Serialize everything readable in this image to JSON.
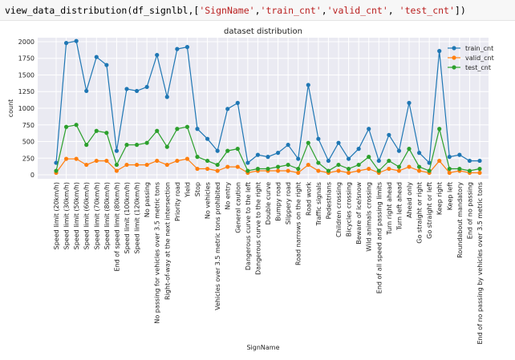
{
  "code": {
    "prefix": "view_data_distribution(df_signlbl,[",
    "args": [
      "'SignName'",
      "'train_cnt'",
      "'valid_cnt'",
      "'test_cnt'"
    ],
    "suffix": "])"
  },
  "chart_data": {
    "type": "line",
    "title": "dataset distribution",
    "xlabel": "SignName",
    "ylabel": "count",
    "ylim": [
      -60,
      2060
    ],
    "yticks": [
      0,
      250,
      500,
      750,
      1000,
      1250,
      1500,
      1750,
      2000
    ],
    "grid": true,
    "legend_position": "top-right",
    "categories": [
      "Speed limit (20km/h)",
      "Speed limit (30km/h)",
      "Speed limit (50km/h)",
      "Speed limit (60km/h)",
      "Speed limit (70km/h)",
      "Speed limit (80km/h)",
      "End of speed limit (80km/h)",
      "Speed limit (100km/h)",
      "Speed limit (120km/h)",
      "No passing",
      "No passing for vehicles over 3.5 metric tons",
      "Right-of-way at the next intersection",
      "Priority road",
      "Yield",
      "Stop",
      "No vehicles",
      "Vehicles over 3.5 metric tons prohibited",
      "No entry",
      "General caution",
      "Dangerous curve to the left",
      "Dangerous curve to the right",
      "Double curve",
      "Bumpy road",
      "Slippery road",
      "Road narrows on the right",
      "Road work",
      "Traffic signals",
      "Pedestrians",
      "Children crossing",
      "Bicycles crossing",
      "Beware of ice/snow",
      "Wild animals crossing",
      "End of all speed and passing limits",
      "Turn right ahead",
      "Turn left ahead",
      "Ahead only",
      "Go straight or right",
      "Go straight or left",
      "Keep right",
      "Keep left",
      "Roundabout mandatory",
      "End of no passing",
      "End of no passing by vehicles over 3.5 metric tons"
    ],
    "series": [
      {
        "name": "train_cnt",
        "color": "#1f77b4",
        "values": [
          180,
          1980,
          2010,
          1260,
          1770,
          1650,
          360,
          1290,
          1260,
          1320,
          1800,
          1170,
          1890,
          1920,
          690,
          540,
          360,
          990,
          1080,
          180,
          300,
          270,
          330,
          450,
          240,
          1350,
          540,
          210,
          480,
          240,
          390,
          690,
          210,
          599,
          360,
          1080,
          330,
          180,
          1860,
          270,
          300,
          210,
          210
        ]
      },
      {
        "name": "valid_cnt",
        "color": "#ff7f0e",
        "values": [
          30,
          240,
          240,
          150,
          210,
          210,
          60,
          150,
          150,
          150,
          210,
          150,
          210,
          240,
          90,
          90,
          60,
          120,
          120,
          30,
          60,
          60,
          60,
          60,
          30,
          150,
          60,
          30,
          60,
          30,
          60,
          90,
          30,
          90,
          60,
          120,
          60,
          30,
          210,
          30,
          60,
          30,
          30
        ]
      },
      {
        "name": "test_cnt",
        "color": "#2ca02c",
        "values": [
          60,
          720,
          750,
          450,
          660,
          630,
          150,
          450,
          450,
          480,
          660,
          420,
          690,
          720,
          270,
          210,
          150,
          360,
          390,
          60,
          90,
          90,
          120,
          150,
          90,
          480,
          180,
          60,
          150,
          90,
          150,
          270,
          60,
          210,
          120,
          390,
          120,
          60,
          690,
          90,
          90,
          60,
          90
        ]
      }
    ]
  }
}
